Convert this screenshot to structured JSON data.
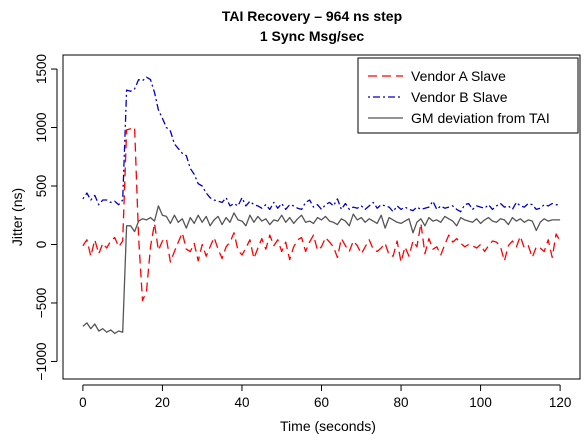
{
  "chart_data": {
    "type": "line",
    "title": "TAI Recovery – 964 ns step",
    "subtitle": "1 Sync Msg/sec",
    "xlabel": "Time (seconds)",
    "ylabel": "Jitter (ns)",
    "xlim": [
      -5,
      125
    ],
    "ylim": [
      -1150,
      1620
    ],
    "xticks": [
      0,
      20,
      40,
      60,
      80,
      100,
      120
    ],
    "yticks": [
      -1000,
      -500,
      0,
      500,
      1000,
      1500
    ],
    "xtick_labels": [
      "0",
      "20",
      "40",
      "60",
      "80",
      "100",
      "120"
    ],
    "ytick_labels": [
      "−1000",
      "−500",
      "0",
      "500",
      "1000",
      "1500"
    ],
    "grid": false,
    "legend_position": "top-right",
    "series": [
      {
        "name": "Vendor A Slave",
        "color": "#ff0000",
        "style": "dashed",
        "x": [
          0,
          1,
          2,
          3,
          4,
          5,
          6,
          7,
          8,
          9,
          10,
          11,
          12,
          13,
          14,
          15,
          16,
          17,
          18,
          19,
          20,
          21,
          22,
          23,
          24,
          25,
          26,
          27,
          28,
          29,
          30,
          31,
          32,
          33,
          34,
          35,
          36,
          37,
          38,
          39,
          40,
          41,
          42,
          43,
          44,
          45,
          46,
          47,
          48,
          49,
          50,
          51,
          52,
          53,
          54,
          55,
          56,
          57,
          58,
          59,
          60,
          61,
          62,
          63,
          64,
          65,
          66,
          67,
          68,
          69,
          70,
          71,
          72,
          73,
          74,
          75,
          76,
          77,
          78,
          79,
          80,
          81,
          82,
          83,
          84,
          85,
          86,
          87,
          88,
          89,
          90,
          91,
          92,
          93,
          94,
          95,
          96,
          97,
          98,
          99,
          100,
          101,
          102,
          103,
          104,
          105,
          106,
          107,
          108,
          109,
          110,
          111,
          112,
          113,
          114,
          115,
          116,
          117,
          118,
          119,
          120
        ],
        "y": [
          -10,
          40,
          -100,
          40,
          -80,
          10,
          -30,
          30,
          60,
          -20,
          30,
          980,
          990,
          1000,
          60,
          -480,
          -400,
          -20,
          180,
          -50,
          30,
          50,
          -150,
          -60,
          20,
          100,
          -40,
          -60,
          10,
          -140,
          0,
          -100,
          -20,
          60,
          -40,
          -120,
          -20,
          20,
          100,
          -50,
          -90,
          -30,
          40,
          -120,
          -30,
          50,
          -40,
          80,
          -10,
          40,
          -60,
          20,
          -130,
          -20,
          40,
          60,
          -60,
          20,
          80,
          -50,
          -20,
          60,
          20,
          -20,
          -110,
          50,
          -10,
          -60,
          30,
          -10,
          -80,
          -20,
          40,
          -40,
          -60,
          -30,
          10,
          -90,
          -100,
          30,
          -150,
          -20,
          -100,
          30,
          -20,
          180,
          -80,
          50,
          -40,
          -20,
          -90,
          0,
          80,
          20,
          50,
          10,
          -20,
          0,
          -10,
          -30,
          0,
          -60,
          -10,
          30,
          20,
          -20,
          -140,
          -10,
          30,
          -20,
          70,
          -30,
          -10,
          -110,
          -20,
          -30,
          -60,
          40,
          -110,
          90,
          30
        ]
      },
      {
        "name": "Vendor B Slave",
        "color": "#0000cc",
        "style": "dot-dash",
        "x": [
          0,
          1,
          2,
          3,
          4,
          5,
          6,
          7,
          8,
          9,
          10,
          11,
          12,
          13,
          14,
          15,
          16,
          17,
          18,
          19,
          20,
          21,
          22,
          23,
          24,
          25,
          26,
          27,
          28,
          29,
          30,
          31,
          32,
          33,
          34,
          35,
          36,
          37,
          38,
          39,
          40,
          41,
          42,
          43,
          44,
          45,
          46,
          47,
          48,
          49,
          50,
          51,
          52,
          53,
          54,
          55,
          56,
          57,
          58,
          59,
          60,
          61,
          62,
          63,
          64,
          65,
          66,
          67,
          68,
          69,
          70,
          71,
          72,
          73,
          74,
          75,
          76,
          77,
          78,
          79,
          80,
          81,
          82,
          83,
          84,
          85,
          86,
          87,
          88,
          89,
          90,
          91,
          92,
          93,
          94,
          95,
          96,
          97,
          98,
          99,
          100,
          101,
          102,
          103,
          104,
          105,
          106,
          107,
          108,
          109,
          110,
          111,
          112,
          113,
          114,
          115,
          116,
          117,
          118,
          119,
          120
        ],
        "y": [
          390,
          440,
          380,
          420,
          340,
          380,
          380,
          360,
          370,
          340,
          380,
          1320,
          1310,
          1330,
          1410,
          1400,
          1430,
          1410,
          1300,
          1150,
          1080,
          1000,
          970,
          860,
          820,
          780,
          760,
          650,
          600,
          520,
          500,
          440,
          400,
          380,
          370,
          360,
          400,
          330,
          350,
          330,
          400,
          330,
          370,
          340,
          330,
          310,
          340,
          300,
          360,
          310,
          350,
          300,
          340,
          330,
          310,
          300,
          360,
          380,
          320,
          340,
          300,
          340,
          360,
          330,
          390,
          300,
          350,
          300,
          320,
          310,
          330,
          300,
          330,
          360,
          310,
          340,
          330,
          320,
          280,
          330,
          300,
          320,
          300,
          290,
          320,
          300,
          310,
          320,
          370,
          300,
          330,
          310,
          320,
          330,
          300,
          280,
          340,
          350,
          300,
          330,
          320,
          310,
          340,
          300,
          330,
          350,
          320,
          330,
          300,
          360,
          330,
          320,
          350,
          340,
          300,
          310,
          340,
          330,
          350,
          340,
          340
        ]
      },
      {
        "name": "GM deviation from TAI",
        "color": "#555555",
        "style": "solid",
        "x": [
          0,
          1,
          2,
          3,
          4,
          5,
          6,
          7,
          8,
          9,
          10,
          11,
          12,
          13,
          14,
          15,
          16,
          17,
          18,
          19,
          20,
          21,
          22,
          23,
          24,
          25,
          26,
          27,
          28,
          29,
          30,
          31,
          32,
          33,
          34,
          35,
          36,
          37,
          38,
          39,
          40,
          41,
          42,
          43,
          44,
          45,
          46,
          47,
          48,
          49,
          50,
          51,
          52,
          53,
          54,
          55,
          56,
          57,
          58,
          59,
          60,
          61,
          62,
          63,
          64,
          65,
          66,
          67,
          68,
          69,
          70,
          71,
          72,
          73,
          74,
          75,
          76,
          77,
          78,
          79,
          80,
          81,
          82,
          83,
          84,
          85,
          86,
          87,
          88,
          89,
          90,
          91,
          92,
          93,
          94,
          95,
          96,
          97,
          98,
          99,
          100,
          101,
          102,
          103,
          104,
          105,
          106,
          107,
          108,
          109,
          110,
          111,
          112,
          113,
          114,
          115,
          116,
          117,
          118,
          119,
          120
        ],
        "y": [
          -700,
          -670,
          -720,
          -680,
          -740,
          -720,
          -750,
          -730,
          -760,
          -740,
          -750,
          160,
          160,
          110,
          200,
          220,
          210,
          230,
          200,
          330,
          250,
          240,
          180,
          250,
          190,
          220,
          140,
          230,
          180,
          250,
          190,
          240,
          160,
          210,
          240,
          170,
          230,
          190,
          270,
          210,
          200,
          160,
          250,
          190,
          240,
          200,
          220,
          170,
          210,
          200,
          250,
          190,
          230,
          180,
          220,
          250,
          190,
          200,
          180,
          230,
          210,
          240,
          200,
          190,
          170,
          220,
          200,
          160,
          260,
          210,
          230,
          190,
          220,
          200,
          180,
          250,
          140,
          230,
          210,
          190,
          180,
          200,
          220,
          100,
          190,
          220,
          160,
          230,
          200,
          210,
          190,
          240,
          220,
          200,
          160,
          230,
          210,
          200,
          190,
          220,
          180,
          210,
          230,
          200,
          190,
          220,
          210,
          170,
          230,
          200,
          220,
          190,
          210,
          200,
          120,
          190,
          220,
          200,
          210,
          210,
          210
        ]
      }
    ]
  }
}
